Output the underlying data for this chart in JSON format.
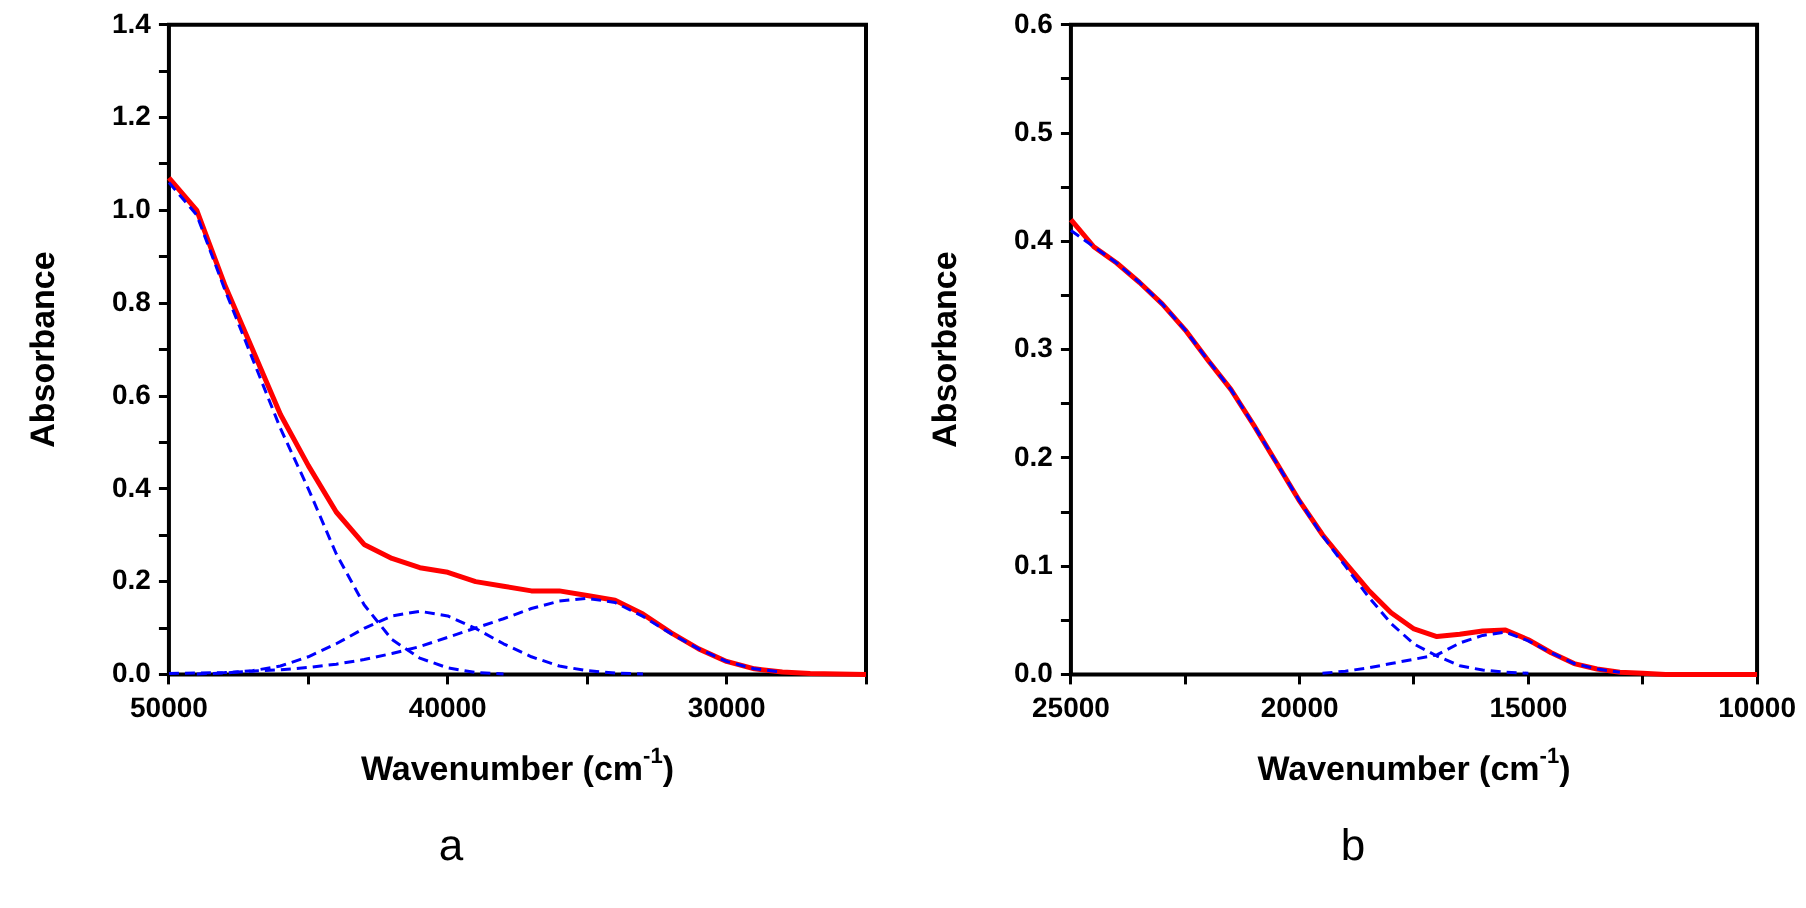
{
  "chart_data": [
    {
      "type": "line",
      "xlabel": "Wavenumber (cm$^{-1}$)",
      "ylabel": "Absorbance",
      "annotations": [
        "a"
      ],
      "marker": "none",
      "grid": false,
      "legend": false,
      "x": [
        50000,
        49000,
        48000,
        47000,
        46000,
        45000,
        44000,
        43000,
        42000,
        41000,
        40000,
        39000,
        38000,
        37000,
        36000,
        35000,
        34000,
        33000,
        32000,
        31000,
        30000,
        29000,
        28000,
        27000,
        26000,
        25000
      ],
      "xlim": [
        50000,
        25000
      ],
      "xticks": [
        50000,
        {
          "value": 45000,
          "label": null
        },
        40000,
        {
          "value": 35000,
          "label": null
        },
        30000,
        {
          "value": 25000,
          "label": null
        }
      ],
      "ylim": [
        0,
        1.4
      ],
      "yticks": [
        {
          "value": 0,
          "label": "0.0"
        },
        {
          "value": 0.1,
          "label": null
        },
        0.2,
        {
          "value": 0.3,
          "label": null
        },
        0.4,
        {
          "value": 0.5,
          "label": null
        },
        0.6,
        {
          "value": 0.7,
          "label": null
        },
        0.8,
        {
          "value": 0.9,
          "label": null
        },
        {
          "value": 1,
          "label": "1.0"
        },
        {
          "value": 1.1,
          "label": null
        },
        1.2,
        {
          "value": 1.3,
          "label": null
        },
        1.4
      ],
      "series": [
        {
          "color": "#0000ff",
          "line_style": "dashed",
          "values": [
            1.06,
            0.99,
            0.83,
            0.68,
            0.53,
            0.4,
            0.26,
            0.15,
            0.075,
            0.035,
            0.014,
            0.004,
            0.001,
            null,
            null,
            null,
            null,
            null,
            null,
            null,
            null,
            null,
            null,
            null,
            null,
            null
          ]
        },
        {
          "color": "#0000ff",
          "line_style": "dashed",
          "values": [
            null,
            0.001,
            0.003,
            0.008,
            0.018,
            0.038,
            0.066,
            0.099,
            0.126,
            0.136,
            0.126,
            0.099,
            0.066,
            0.038,
            0.018,
            0.008,
            0.003,
            0.001,
            null,
            null,
            null,
            null,
            null,
            null,
            null,
            null
          ]
        },
        {
          "color": "#0000ff",
          "line_style": "dashed",
          "values": [
            0.002,
            0.003,
            0.004,
            0.007,
            0.01,
            0.015,
            0.022,
            0.032,
            0.045,
            0.06,
            0.08,
            0.1,
            0.12,
            0.142,
            0.158,
            0.164,
            0.155,
            0.125,
            0.088,
            0.055,
            0.028,
            0.012,
            0.005,
            null,
            null,
            null
          ]
        },
        {
          "color": "#ff0000",
          "line_style": "solid",
          "values": [
            1.07,
            1.0,
            0.84,
            0.7,
            0.56,
            0.45,
            0.35,
            0.28,
            0.25,
            0.23,
            0.22,
            0.2,
            0.19,
            0.18,
            0.18,
            0.17,
            0.16,
            0.13,
            0.09,
            0.055,
            0.028,
            0.012,
            0.005,
            0.002,
            0.001,
            0
          ]
        }
      ]
    },
    {
      "type": "line",
      "xlabel": "Wavenumber (cm$^{-1}$)",
      "ylabel": "Absorbance",
      "annotations": [
        "b"
      ],
      "marker": "none",
      "grid": false,
      "legend": false,
      "x": [
        25000,
        24500,
        24000,
        23500,
        23000,
        22500,
        22000,
        21500,
        21000,
        20500,
        20000,
        19500,
        19000,
        18500,
        18000,
        17500,
        17000,
        16500,
        16000,
        15500,
        15000,
        14500,
        14000,
        13500,
        13000,
        12500,
        12000,
        11500,
        11000,
        10500,
        10000
      ],
      "xlim": [
        25000,
        10000
      ],
      "xticks": [
        25000,
        {
          "value": 22500,
          "label": null
        },
        20000,
        {
          "value": 17500,
          "label": null
        },
        15000,
        {
          "value": 12500,
          "label": null
        },
        10000
      ],
      "ylim": [
        0,
        0.6
      ],
      "yticks": [
        {
          "value": 0,
          "label": "0.0"
        },
        {
          "value": 0.05,
          "label": null
        },
        0.1,
        {
          "value": 0.15,
          "label": null
        },
        0.2,
        {
          "value": 0.25,
          "label": null
        },
        0.3,
        {
          "value": 0.35,
          "label": null
        },
        0.4,
        {
          "value": 0.45,
          "label": null
        },
        0.5,
        {
          "value": 0.55,
          "label": null
        },
        0.6
      ],
      "series": [
        {
          "color": "#0000ff",
          "line_style": "dashed",
          "values": [
            0.41,
            0.395,
            0.38,
            0.362,
            0.342,
            0.318,
            0.29,
            0.263,
            0.23,
            0.195,
            0.16,
            0.128,
            0.1,
            0.072,
            0.047,
            0.028,
            0.017,
            0.008,
            0.004,
            0.002,
            0.001,
            null,
            null,
            null,
            null,
            null,
            null,
            null,
            null,
            null,
            null
          ]
        },
        {
          "color": "#0000ff",
          "line_style": "dashed",
          "values": [
            null,
            null,
            null,
            null,
            null,
            null,
            null,
            null,
            null,
            null,
            null,
            0.001,
            0.003,
            0.006,
            0.01,
            0.014,
            0.018,
            0.029,
            0.036,
            0.039,
            0.031,
            0.02,
            0.01,
            0.005,
            0.002,
            null,
            null,
            null,
            null,
            null,
            null
          ]
        },
        {
          "color": "#ff0000",
          "line_style": "solid",
          "values": [
            0.42,
            0.395,
            0.38,
            0.362,
            0.342,
            0.318,
            0.29,
            0.263,
            0.23,
            0.195,
            0.16,
            0.129,
            0.103,
            0.078,
            0.057,
            0.042,
            0.035,
            0.037,
            0.04,
            0.041,
            0.032,
            0.02,
            0.01,
            0.005,
            0.002,
            0.001,
            0,
            0,
            0,
            0,
            0
          ]
        }
      ]
    }
  ]
}
